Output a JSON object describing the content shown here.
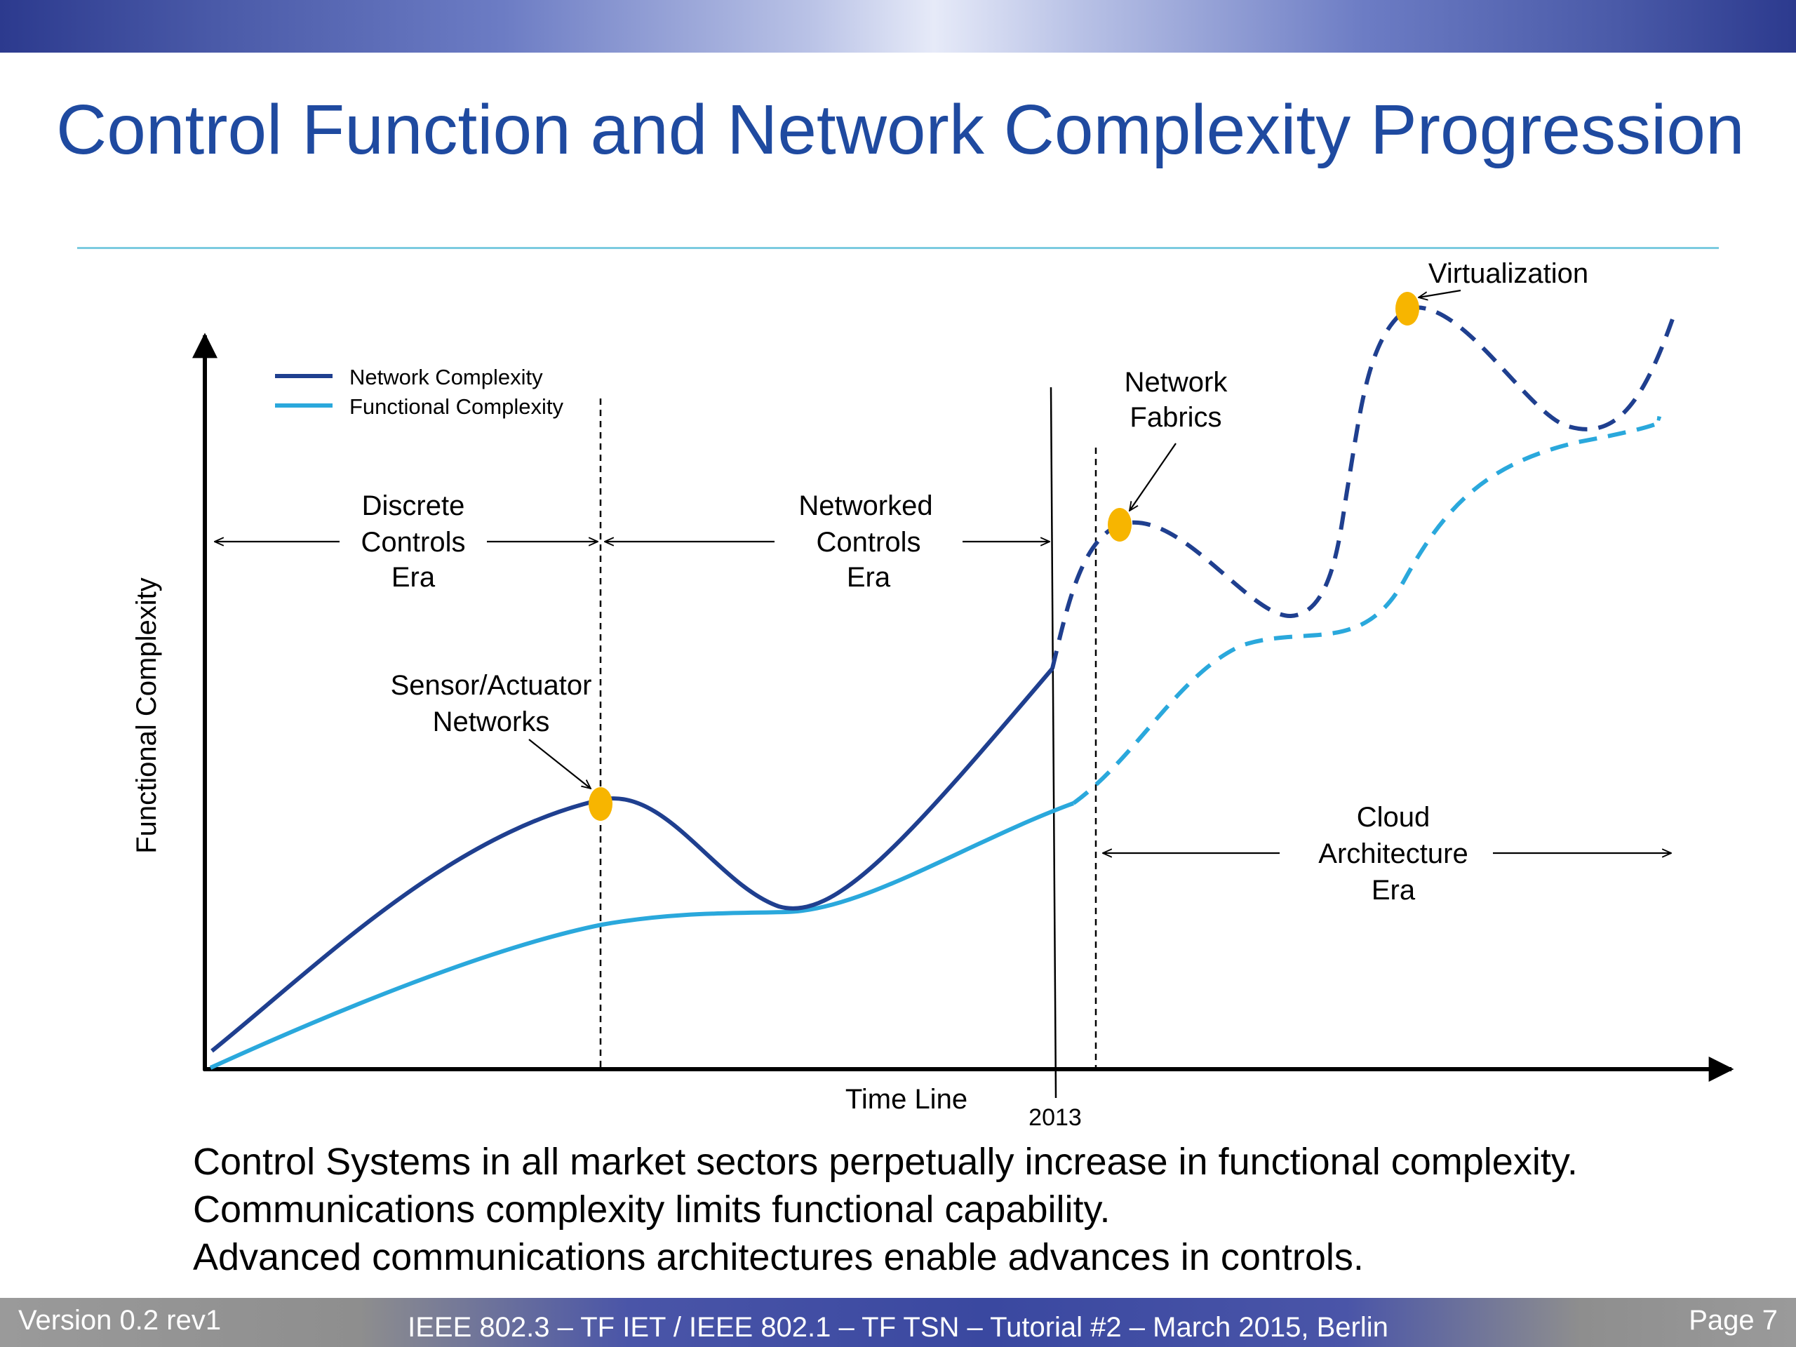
{
  "slide": {
    "title": "Control Function and Network Complexity Progression"
  },
  "diagram": {
    "axis_y_label": "Functional Complexity",
    "axis_x_label": "Time Line",
    "year_label": "2013",
    "legend": [
      {
        "label": "Network Complexity",
        "color": "#1f3f8f"
      },
      {
        "label": "Functional Complexity",
        "color": "#2aa8dc"
      }
    ],
    "eras": {
      "discrete": [
        "Discrete",
        "Controls",
        "Era"
      ],
      "networked": [
        "Networked",
        "Controls",
        "Era"
      ],
      "cloud": [
        "Cloud",
        "Architecture",
        "Era"
      ]
    },
    "milestones": {
      "sensor": [
        "Sensor/Actuator",
        "Networks"
      ],
      "fabrics": [
        "Network",
        "Fabrics"
      ],
      "virtualization": "Virtualization"
    },
    "colors": {
      "network_curve": "#1f3f8f",
      "functional_curve": "#2aa8dc",
      "milestone_dot": "#f7b500"
    }
  },
  "caption": {
    "lines": [
      "Control Systems in all market sectors perpetually increase in functional complexity.",
      "Communications complexity limits functional capability.",
      "Advanced communications architectures enable advances in controls."
    ]
  },
  "footer": {
    "version": "Version 0.2 rev1",
    "event": "IEEE 802.3 – TF IET / IEEE 802.1 – TF TSN – Tutorial #2 – March 2015, Berlin",
    "page": "Page 7"
  }
}
